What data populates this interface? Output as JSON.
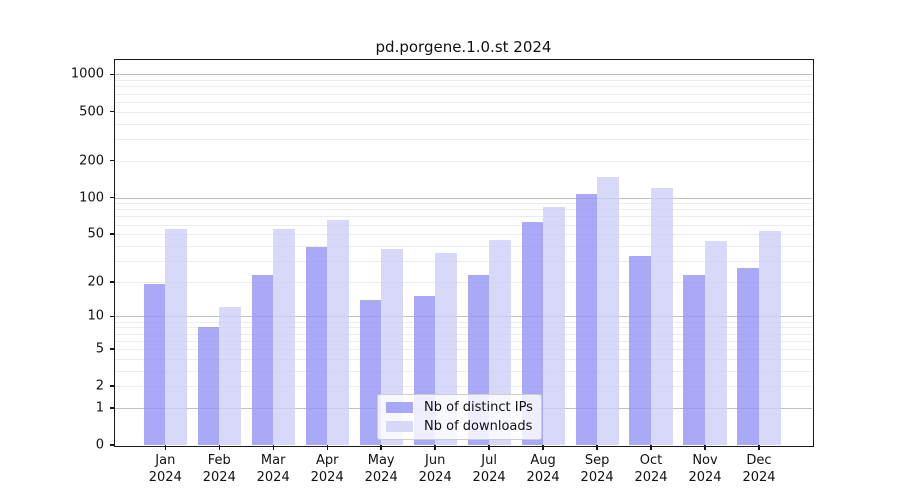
{
  "chart_data": {
    "type": "bar",
    "title": "pd.porgene.1.0.st 2024",
    "categories": [
      "Jan",
      "Feb",
      "Mar",
      "Apr",
      "May",
      "Jun",
      "Jul",
      "Aug",
      "Sep",
      "Oct",
      "Nov",
      "Dec"
    ],
    "category_year": "2024",
    "series": [
      {
        "name": "Nb of distinct IPs",
        "color": "#9494f6",
        "values": [
          19,
          8,
          23,
          39,
          14,
          15,
          23,
          63,
          107,
          33,
          23,
          26
        ]
      },
      {
        "name": "Nb of downloads",
        "color": "#cecef6",
        "values": [
          55,
          12,
          55,
          65,
          38,
          35,
          45,
          83,
          146,
          120,
          44,
          53
        ]
      }
    ],
    "xlabel": "",
    "ylabel": "",
    "y_scale": "log10(value+1)",
    "ylim": [
      0,
      1250
    ],
    "y_ticks": [
      0,
      1,
      2,
      5,
      10,
      20,
      50,
      100,
      200,
      500,
      1000
    ],
    "y_major_grid": [
      1,
      10,
      100,
      1000
    ],
    "y_minor_grid": [
      2,
      3,
      4,
      5,
      6,
      7,
      8,
      9,
      20,
      30,
      40,
      50,
      60,
      70,
      80,
      90,
      200,
      300,
      400,
      500,
      600,
      700,
      800,
      900
    ],
    "grid": true,
    "legend_position": "lower-center inside plot",
    "colors": {
      "grid_major": "#c0c0c0",
      "grid_minor": "#ececec",
      "spine": "#17171c",
      "text": "#111111"
    }
  }
}
